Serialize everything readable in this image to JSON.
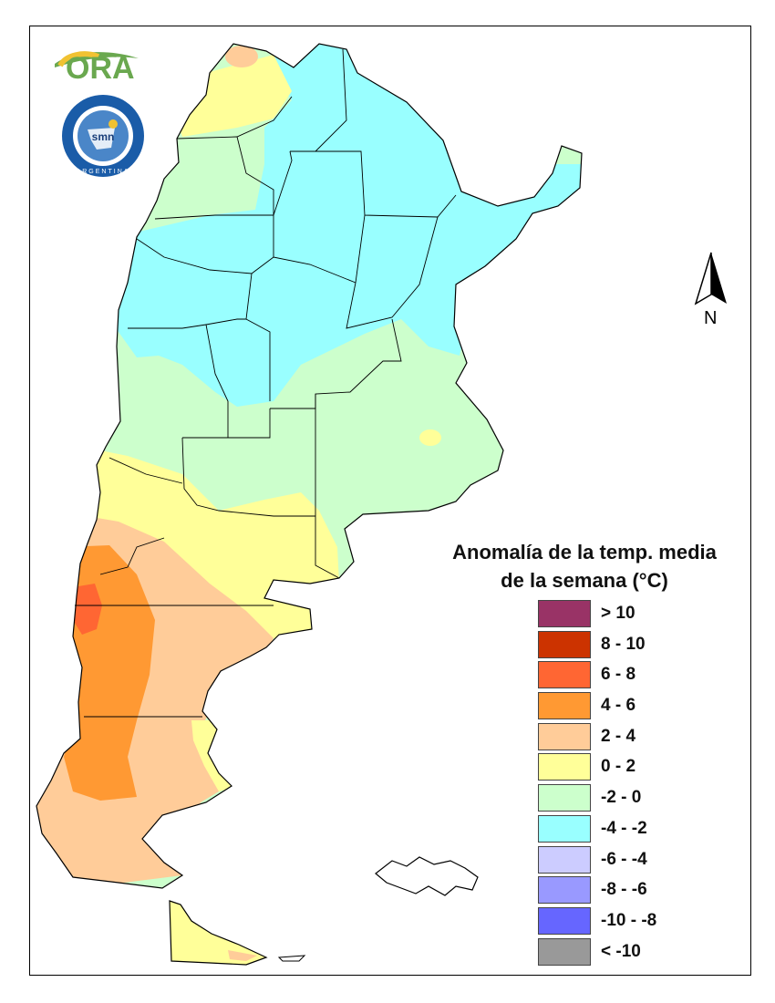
{
  "logos": {
    "ora_text": "ORA",
    "smn_ring_text": "SERVICIO METEOROLÓGICO NACIONAL",
    "smn_bottom_text": "ARGENTINA",
    "smn_center_text": "smn"
  },
  "north_arrow": {
    "label": "N"
  },
  "legend": {
    "title_line1": "Anomalía de la temp. media",
    "title_line2": "de la semana (°C)",
    "items": [
      {
        "label": "> 10",
        "color": "#993366"
      },
      {
        "label": "8 - 10",
        "color": "#cc3300"
      },
      {
        "label": "6 - 8",
        "color": "#ff6633"
      },
      {
        "label": "4 - 6",
        "color": "#ff9933"
      },
      {
        "label": "2 - 4",
        "color": "#ffcc99"
      },
      {
        "label": "0 - 2",
        "color": "#ffff99"
      },
      {
        "label": "-2 - 0",
        "color": "#ccffcc"
      },
      {
        "label": "-4 - -2",
        "color": "#99ffff"
      },
      {
        "label": "-6 - -4",
        "color": "#ccccff"
      },
      {
        "label": "-8 - -6",
        "color": "#9999ff"
      },
      {
        "label": "-10 - -8",
        "color": "#6666ff"
      },
      {
        "label": "< -10",
        "color": "#999999"
      }
    ]
  }
}
